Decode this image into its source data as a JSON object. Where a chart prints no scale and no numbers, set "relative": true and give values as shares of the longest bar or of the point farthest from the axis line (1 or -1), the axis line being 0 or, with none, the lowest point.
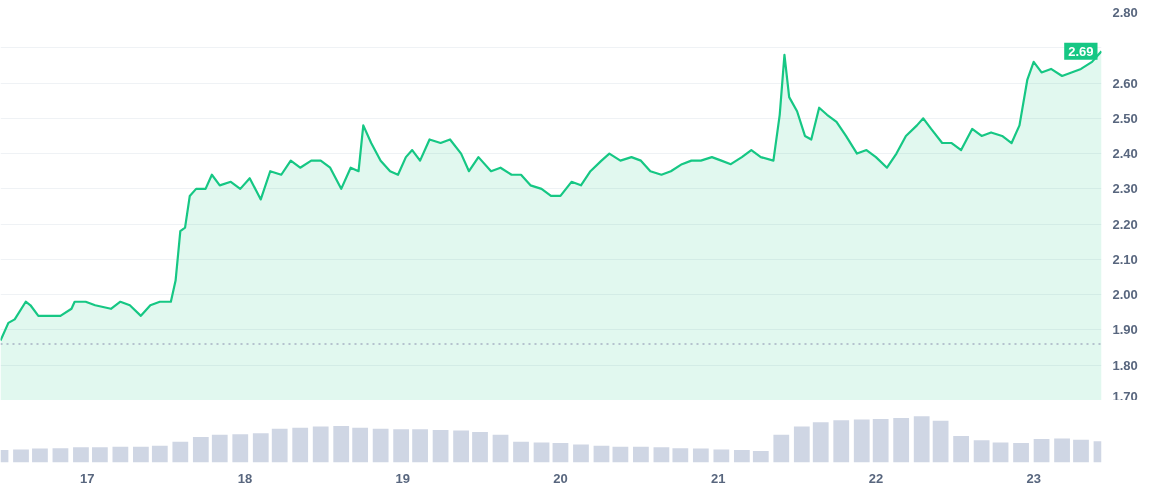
{
  "chart_data": [
    {
      "type": "area",
      "x": [
        16.45,
        16.5,
        16.54,
        16.61,
        16.64,
        16.69,
        16.77,
        16.83,
        16.9,
        16.92,
        16.99,
        17.05,
        17.15,
        17.21,
        17.27,
        17.34,
        17.4,
        17.46,
        17.53,
        17.56,
        17.59,
        17.62,
        17.65,
        17.69,
        17.75,
        17.79,
        17.84,
        17.91,
        17.97,
        18.03,
        18.1,
        18.16,
        18.23,
        18.29,
        18.35,
        18.42,
        18.48,
        18.54,
        18.61,
        18.67,
        18.72,
        18.75,
        18.8,
        18.86,
        18.92,
        18.97,
        19.02,
        19.06,
        19.11,
        19.17,
        19.24,
        19.3,
        19.37,
        19.42,
        19.48,
        19.56,
        19.62,
        19.69,
        19.75,
        19.81,
        19.88,
        19.94,
        20.0,
        20.07,
        20.13,
        20.19,
        20.26,
        20.31,
        20.38,
        20.45,
        20.51,
        20.57,
        20.64,
        20.7,
        20.77,
        20.83,
        20.89,
        20.96,
        21.02,
        21.08,
        21.15,
        21.21,
        21.27,
        21.35,
        21.39,
        21.42,
        21.45,
        21.5,
        21.55,
        21.59,
        21.64,
        21.69,
        21.75,
        21.81,
        21.88,
        21.94,
        22.0,
        22.07,
        22.13,
        22.19,
        22.26,
        22.3,
        22.35,
        22.42,
        22.48,
        22.54,
        22.61,
        22.67,
        22.73,
        22.8,
        22.86,
        22.91,
        22.96,
        23.0,
        23.05,
        23.11,
        23.18,
        23.24,
        23.3,
        23.37,
        23.41,
        23.43
      ],
      "series": [
        {
          "color": "#16c784",
          "values": [
            1.87,
            1.92,
            1.93,
            1.98,
            1.97,
            1.94,
            1.94,
            1.94,
            1.96,
            1.98,
            1.98,
            1.97,
            1.96,
            1.98,
            1.97,
            1.94,
            1.97,
            1.98,
            1.98,
            2.04,
            2.18,
            2.19,
            2.28,
            2.3,
            2.3,
            2.34,
            2.31,
            2.32,
            2.3,
            2.33,
            2.27,
            2.35,
            2.34,
            2.38,
            2.36,
            2.38,
            2.38,
            2.36,
            2.3,
            2.36,
            2.35,
            2.48,
            2.43,
            2.38,
            2.35,
            2.34,
            2.39,
            2.41,
            2.38,
            2.44,
            2.43,
            2.44,
            2.4,
            2.35,
            2.39,
            2.35,
            2.36,
            2.34,
            2.34,
            2.31,
            2.3,
            2.28,
            2.28,
            2.32,
            2.31,
            2.35,
            2.38,
            2.4,
            2.38,
            2.39,
            2.38,
            2.35,
            2.34,
            2.35,
            2.37,
            2.38,
            2.38,
            2.39,
            2.38,
            2.37,
            2.39,
            2.41,
            2.39,
            2.38,
            2.51,
            2.68,
            2.56,
            2.52,
            2.45,
            2.44,
            2.53,
            2.51,
            2.49,
            2.45,
            2.4,
            2.41,
            2.39,
            2.36,
            2.4,
            2.45,
            2.48,
            2.5,
            2.47,
            2.43,
            2.43,
            2.41,
            2.47,
            2.45,
            2.46,
            2.45,
            2.43,
            2.48,
            2.61,
            2.66,
            2.63,
            2.64,
            2.62,
            2.63,
            2.64,
            2.66,
            2.68,
            2.69
          ]
        }
      ],
      "xlim": [
        16.45,
        23.43
      ],
      "xticks": [
        17,
        18,
        19,
        20,
        21,
        22,
        23
      ],
      "ylim": [
        1.7,
        2.8
      ],
      "yticks": [
        {
          "value": 1.7,
          "label": "1.70"
        },
        {
          "value": 1.8,
          "label": "1.80"
        },
        {
          "value": 1.9,
          "label": "1.90"
        },
        {
          "value": 2.0,
          "label": "2.00"
        },
        {
          "value": 2.1,
          "label": "2.10"
        },
        {
          "value": 2.2,
          "label": "2.20"
        },
        {
          "value": 2.3,
          "label": "2.30"
        },
        {
          "value": 2.4,
          "label": "2.40"
        },
        {
          "value": 2.5,
          "label": "2.50"
        },
        {
          "value": 2.6,
          "label": "2.60"
        },
        {
          "value": 2.7,
          "label": null
        },
        {
          "value": 2.8,
          "label": "2.80"
        }
      ],
      "tick_labels": "y",
      "grid": "y",
      "ref_lines": [
        {
          "axis": "y",
          "value": 1.86,
          "color": "#a6b0c3",
          "line_style": "dotted"
        }
      ],
      "annotations": [
        {
          "text": "2.69",
          "x": 23.43,
          "y": 2.69
        }
      ]
    },
    {
      "type": "bar",
      "relative": true,
      "color": "#cfd6e4",
      "x": [
        16.45,
        16.58,
        16.7,
        16.83,
        16.96,
        17.08,
        17.21,
        17.34,
        17.46,
        17.59,
        17.72,
        17.84,
        17.97,
        18.1,
        18.22,
        18.35,
        18.48,
        18.61,
        18.73,
        18.86,
        18.99,
        19.11,
        19.24,
        19.37,
        19.49,
        19.62,
        19.75,
        19.88,
        20.0,
        20.13,
        20.26,
        20.38,
        20.51,
        20.64,
        20.76,
        20.89,
        21.02,
        21.15,
        21.27,
        21.4,
        21.53,
        21.65,
        21.78,
        21.91,
        22.03,
        22.16,
        22.29,
        22.41,
        22.54,
        22.67,
        22.79,
        22.92,
        23.05,
        23.18,
        23.3,
        23.43
      ],
      "values": [
        0.27,
        0.28,
        0.3,
        0.31,
        0.33,
        0.33,
        0.34,
        0.34,
        0.36,
        0.45,
        0.55,
        0.6,
        0.61,
        0.63,
        0.73,
        0.75,
        0.78,
        0.79,
        0.75,
        0.73,
        0.72,
        0.72,
        0.7,
        0.69,
        0.66,
        0.6,
        0.45,
        0.43,
        0.42,
        0.39,
        0.36,
        0.34,
        0.34,
        0.33,
        0.31,
        0.3,
        0.28,
        0.27,
        0.25,
        0.6,
        0.78,
        0.87,
        0.91,
        0.93,
        0.94,
        0.96,
        1,
        0.9,
        0.57,
        0.48,
        0.43,
        0.42,
        0.51,
        0.52,
        0.49,
        0.46
      ],
      "xlim": [
        16.45,
        23.43
      ],
      "xticks": [
        17,
        18,
        19,
        20,
        21,
        22,
        23
      ],
      "tick_labels": "x"
    }
  ]
}
